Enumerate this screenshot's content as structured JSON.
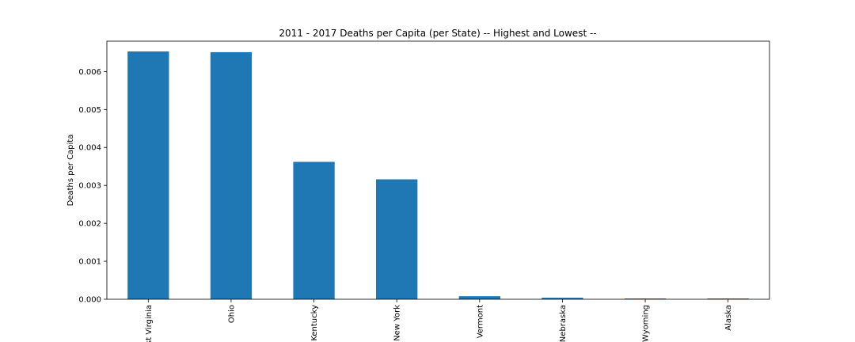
{
  "chart_data": {
    "type": "bar",
    "title": "2011 - 2017 Deaths per Capita (per State) -- Highest and Lowest --",
    "xlabel": "",
    "ylabel": "Deaths per Capita",
    "categories": [
      "West Virginia",
      "Ohio",
      "Kentucky",
      "New York",
      "Vermont",
      "Nebraska",
      "Wyoming",
      "Alaska"
    ],
    "values": [
      0.00653,
      0.00651,
      0.00362,
      0.00316,
      8e-05,
      4e-05,
      2e-05,
      2e-05
    ],
    "ylim": [
      0,
      0.0068
    ],
    "yticks": [
      "0.000",
      "0.001",
      "0.002",
      "0.003",
      "0.004",
      "0.005",
      "0.006"
    ],
    "bar_color": "#1f77b4",
    "grid": false
  }
}
